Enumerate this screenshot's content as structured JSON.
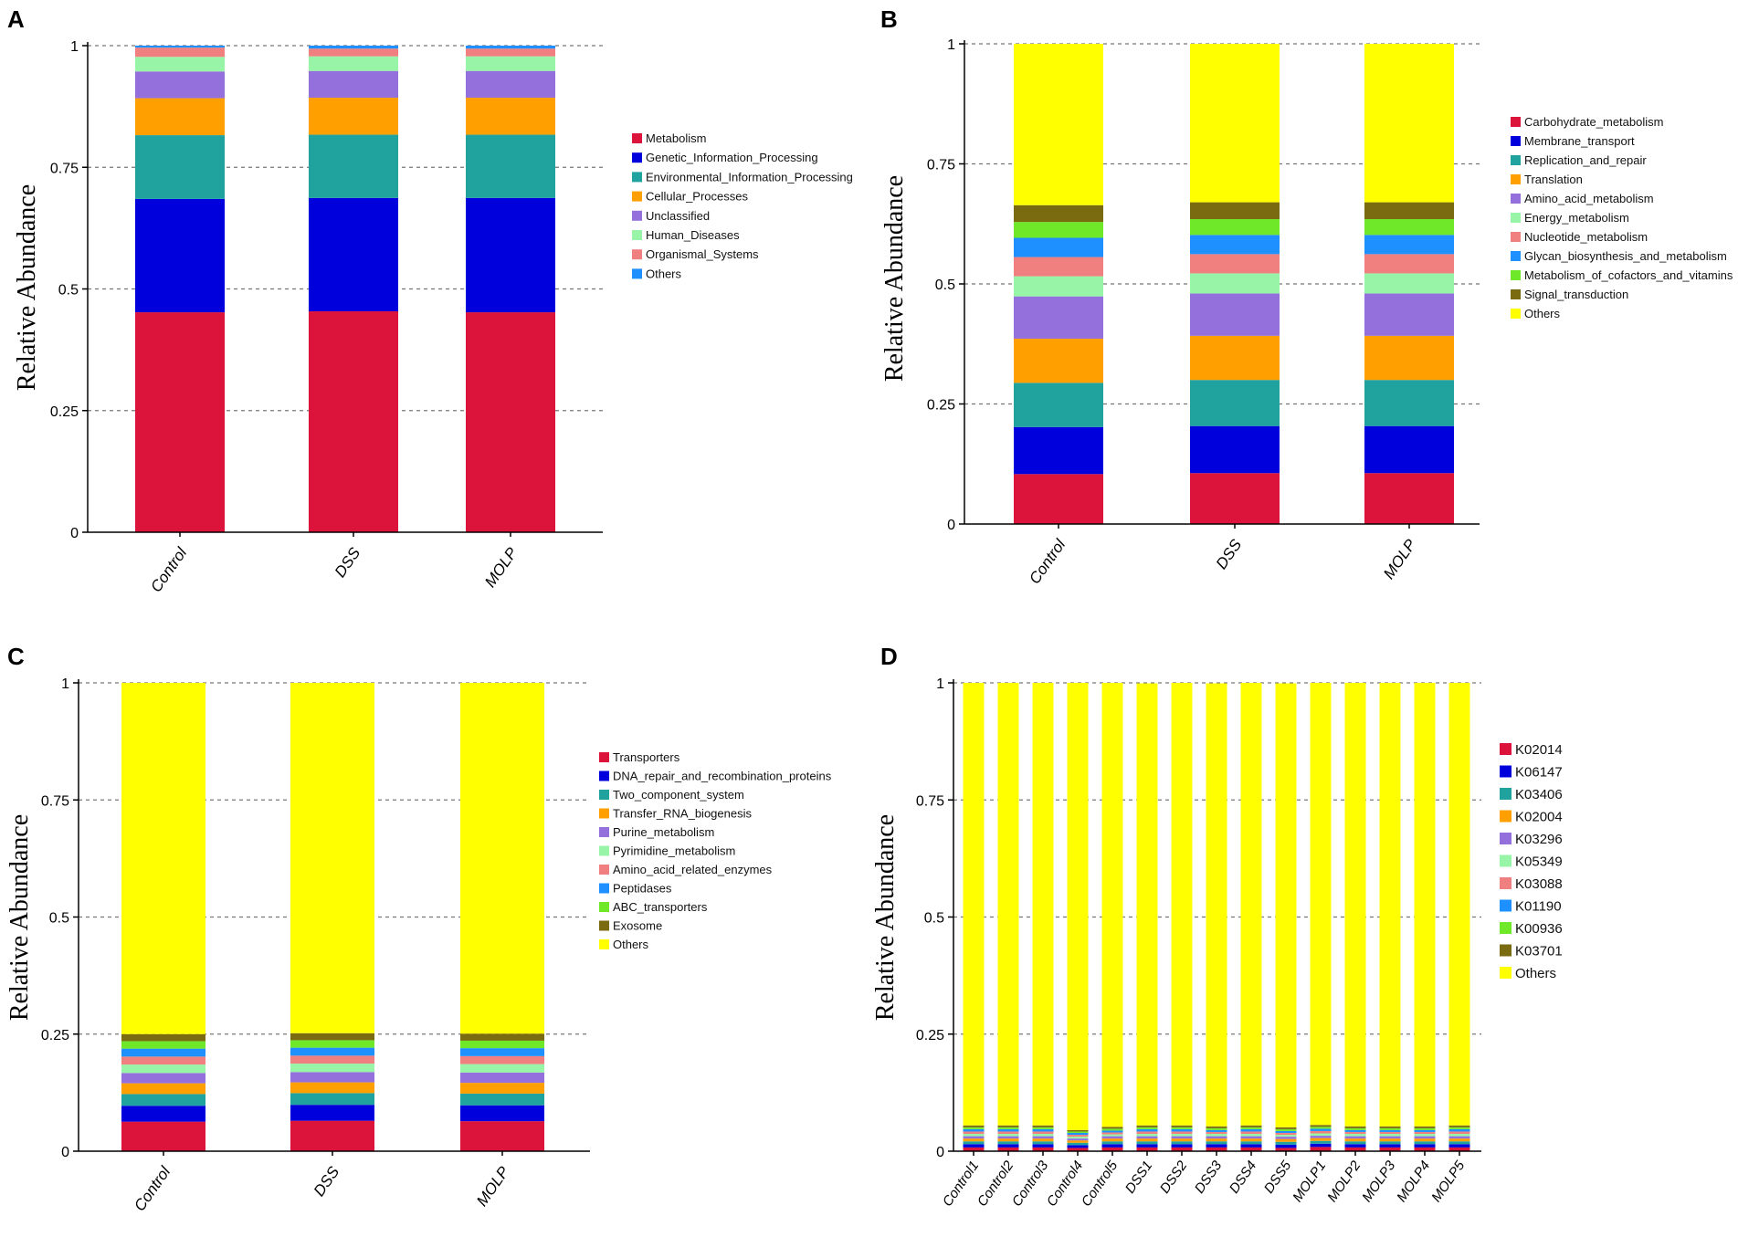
{
  "figure": {
    "background": "#ffffff"
  },
  "chart_data": [
    {
      "panel": "A",
      "type": "bar",
      "stacked": true,
      "ylabel": "Relative Abundance",
      "xlabel": "",
      "ylim": [
        0,
        1
      ],
      "yticks": [
        "0",
        "0.25",
        "0.5",
        "0.75",
        "1"
      ],
      "grid": true,
      "legend": "right",
      "categories": [
        "Control",
        "DSS",
        "MOLP"
      ],
      "series": [
        {
          "name": "Metabolism",
          "color": "#dc143c",
          "values": [
            0.452,
            0.454,
            0.452
          ]
        },
        {
          "name": "Genetic_Information_Processing",
          "color": "#0000dd",
          "values": [
            0.233,
            0.233,
            0.235
          ]
        },
        {
          "name": "Environmental_Information_Processing",
          "color": "#20a39e",
          "values": [
            0.131,
            0.13,
            0.13
          ]
        },
        {
          "name": "Cellular_Processes",
          "color": "#ff9f00",
          "values": [
            0.076,
            0.076,
            0.076
          ]
        },
        {
          "name": "Unclassified",
          "color": "#9370db",
          "values": [
            0.055,
            0.055,
            0.055
          ]
        },
        {
          "name": "Human_Diseases",
          "color": "#98f5a8",
          "values": [
            0.03,
            0.03,
            0.03
          ]
        },
        {
          "name": "Organismal_Systems",
          "color": "#f08080",
          "values": [
            0.019,
            0.016,
            0.016
          ]
        },
        {
          "name": "Others",
          "color": "#1e90ff",
          "values": [
            0.004,
            0.006,
            0.006
          ]
        }
      ]
    },
    {
      "panel": "B",
      "type": "bar",
      "stacked": true,
      "ylabel": "Relative Abundance",
      "xlabel": "",
      "ylim": [
        0,
        1
      ],
      "yticks": [
        "0",
        "0.25",
        "0.5",
        "0.75",
        "1"
      ],
      "grid": true,
      "legend": "right",
      "categories": [
        "Control",
        "DSS",
        "MOLP"
      ],
      "series": [
        {
          "name": "Carbohydrate_metabolism",
          "color": "#dc143c",
          "values": [
            0.104,
            0.106,
            0.106
          ]
        },
        {
          "name": "Membrane_transport",
          "color": "#0000dd",
          "values": [
            0.098,
            0.098,
            0.098
          ]
        },
        {
          "name": "Replication_and_repair",
          "color": "#20a39e",
          "values": [
            0.092,
            0.096,
            0.096
          ]
        },
        {
          "name": "Translation",
          "color": "#ff9f00",
          "values": [
            0.092,
            0.092,
            0.092
          ]
        },
        {
          "name": "Amino_acid_metabolism",
          "color": "#9370db",
          "values": [
            0.088,
            0.088,
            0.088
          ]
        },
        {
          "name": "Energy_metabolism",
          "color": "#98f5a8",
          "values": [
            0.042,
            0.042,
            0.042
          ]
        },
        {
          "name": "Nucleotide_metabolism",
          "color": "#f08080",
          "values": [
            0.04,
            0.04,
            0.04
          ]
        },
        {
          "name": "Glycan_biosynthesis_and_metabolism",
          "color": "#1e90ff",
          "values": [
            0.04,
            0.04,
            0.04
          ]
        },
        {
          "name": "Metabolism_of_cofactors_and_vitamins",
          "color": "#6fe82a",
          "values": [
            0.033,
            0.033,
            0.033
          ]
        },
        {
          "name": "Signal_transduction",
          "color": "#7a6a10",
          "values": [
            0.035,
            0.035,
            0.035
          ]
        },
        {
          "name": "Others",
          "color": "#ffff00",
          "values": [
            0.336,
            0.33,
            0.33
          ]
        }
      ]
    },
    {
      "panel": "C",
      "type": "bar",
      "stacked": true,
      "ylabel": "Relative Abundance",
      "xlabel": "",
      "ylim": [
        0,
        1
      ],
      "yticks": [
        "0",
        "0.25",
        "0.5",
        "0.75",
        "1"
      ],
      "grid": true,
      "legend": "right",
      "categories": [
        "Control",
        "DSS",
        "MOLP"
      ],
      "series": [
        {
          "name": "Transporters",
          "color": "#dc143c",
          "values": [
            0.063,
            0.065,
            0.064
          ]
        },
        {
          "name": "DNA_repair_and_recombination_proteins",
          "color": "#0000dd",
          "values": [
            0.034,
            0.034,
            0.034
          ]
        },
        {
          "name": "Two_component_system",
          "color": "#20a39e",
          "values": [
            0.025,
            0.025,
            0.025
          ]
        },
        {
          "name": "Transfer_RNA_biogenesis",
          "color": "#ff9f00",
          "values": [
            0.023,
            0.023,
            0.023
          ]
        },
        {
          "name": "Purine_metabolism",
          "color": "#9370db",
          "values": [
            0.022,
            0.022,
            0.022
          ]
        },
        {
          "name": "Pyrimidine_metabolism",
          "color": "#98f5a8",
          "values": [
            0.018,
            0.018,
            0.018
          ]
        },
        {
          "name": "Amino_acid_related_enzymes",
          "color": "#f08080",
          "values": [
            0.017,
            0.017,
            0.017
          ]
        },
        {
          "name": "Peptidases",
          "color": "#1e90ff",
          "values": [
            0.017,
            0.017,
            0.017
          ]
        },
        {
          "name": "ABC_transporters",
          "color": "#6fe82a",
          "values": [
            0.016,
            0.016,
            0.016
          ]
        },
        {
          "name": "Exosome",
          "color": "#7a6a10",
          "values": [
            0.015,
            0.015,
            0.015
          ]
        },
        {
          "name": "Others",
          "color": "#ffff00",
          "values": [
            0.75,
            0.748,
            0.749
          ]
        }
      ]
    },
    {
      "panel": "D",
      "type": "bar",
      "stacked": true,
      "ylabel": "Relative Abundance",
      "xlabel": "",
      "ylim": [
        0,
        1
      ],
      "yticks": [
        "0",
        "0.25",
        "0.5",
        "0.75",
        "1"
      ],
      "grid": true,
      "legend": "right",
      "categories": [
        "Control1",
        "Control2",
        "Control3",
        "Control4",
        "Control5",
        "DSS1",
        "DSS2",
        "DSS3",
        "DSS4",
        "DSS5",
        "MOLP1",
        "MOLP2",
        "MOLP3",
        "MOLP4",
        "MOLP5"
      ],
      "series": [
        {
          "name": "K02014",
          "color": "#dc143c",
          "values": [
            0.008,
            0.008,
            0.008,
            0.007,
            0.008,
            0.008,
            0.008,
            0.008,
            0.008,
            0.007,
            0.009,
            0.008,
            0.008,
            0.008,
            0.008
          ]
        },
        {
          "name": "K06147",
          "color": "#0000dd",
          "values": [
            0.007,
            0.007,
            0.007,
            0.006,
            0.007,
            0.007,
            0.007,
            0.007,
            0.007,
            0.007,
            0.007,
            0.007,
            0.007,
            0.007,
            0.007
          ]
        },
        {
          "name": "K03406",
          "color": "#20a39e",
          "values": [
            0.006,
            0.006,
            0.006,
            0.005,
            0.006,
            0.006,
            0.006,
            0.006,
            0.006,
            0.006,
            0.006,
            0.006,
            0.006,
            0.006,
            0.006
          ]
        },
        {
          "name": "K02004",
          "color": "#ff9f00",
          "values": [
            0.006,
            0.006,
            0.006,
            0.005,
            0.006,
            0.006,
            0.006,
            0.006,
            0.006,
            0.006,
            0.006,
            0.006,
            0.006,
            0.006,
            0.006
          ]
        },
        {
          "name": "K03296",
          "color": "#9370db",
          "values": [
            0.005,
            0.005,
            0.005,
            0.004,
            0.005,
            0.005,
            0.005,
            0.005,
            0.005,
            0.005,
            0.005,
            0.005,
            0.005,
            0.005,
            0.005
          ]
        },
        {
          "name": "K05349",
          "color": "#98f5a8",
          "values": [
            0.005,
            0.005,
            0.005,
            0.004,
            0.004,
            0.005,
            0.005,
            0.005,
            0.005,
            0.004,
            0.005,
            0.005,
            0.005,
            0.005,
            0.005
          ]
        },
        {
          "name": "K03088",
          "color": "#f08080",
          "values": [
            0.005,
            0.005,
            0.005,
            0.004,
            0.004,
            0.005,
            0.005,
            0.004,
            0.005,
            0.004,
            0.005,
            0.004,
            0.004,
            0.004,
            0.005
          ]
        },
        {
          "name": "K01190",
          "color": "#1e90ff",
          "values": [
            0.005,
            0.005,
            0.005,
            0.004,
            0.004,
            0.005,
            0.005,
            0.004,
            0.005,
            0.004,
            0.005,
            0.004,
            0.004,
            0.004,
            0.005
          ]
        },
        {
          "name": "K00936",
          "color": "#6fe82a",
          "values": [
            0.004,
            0.004,
            0.004,
            0.003,
            0.004,
            0.004,
            0.004,
            0.004,
            0.004,
            0.004,
            0.004,
            0.004,
            0.004,
            0.004,
            0.004
          ]
        },
        {
          "name": "K03701",
          "color": "#7a6a10",
          "values": [
            0.004,
            0.004,
            0.004,
            0.003,
            0.004,
            0.004,
            0.004,
            0.004,
            0.004,
            0.004,
            0.004,
            0.004,
            0.004,
            0.004,
            0.004
          ]
        },
        {
          "name": "Others",
          "color": "#ffff00",
          "values": [
            0.945,
            0.945,
            0.945,
            0.955,
            0.948,
            0.944,
            0.945,
            0.946,
            0.945,
            0.948,
            0.944,
            0.947,
            0.947,
            0.947,
            0.945
          ]
        }
      ]
    }
  ]
}
